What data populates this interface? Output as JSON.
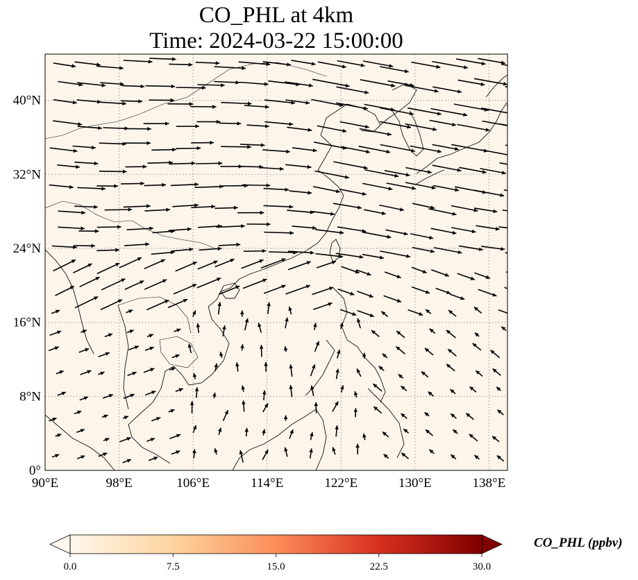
{
  "title": {
    "line1": "CO_PHL at 4km",
    "line2": "Time: 2024-03-22 15:00:00"
  },
  "map": {
    "background_color": "#fdf5ea",
    "lon_range": [
      90,
      140
    ],
    "lat_range": [
      0,
      45
    ],
    "lon_ticks": [
      "90°E",
      "98°E",
      "106°E",
      "114°E",
      "122°E",
      "130°E",
      "138°E"
    ],
    "lat_ticks": [
      "0°",
      "8°N",
      "16°N",
      "24°N",
      "32°N",
      "40°N"
    ],
    "gridlines": "dotted"
  },
  "colorbar": {
    "label": "CO_PHL (ppbv)",
    "ticks": [
      "0.0",
      "7.5",
      "15.0",
      "22.5",
      "30.0"
    ],
    "range": [
      0,
      30
    ],
    "colors": [
      "#fff7ec",
      "#fdd49e",
      "#fc8d59",
      "#d7301f",
      "#7f0000"
    ],
    "extend": "both"
  }
}
